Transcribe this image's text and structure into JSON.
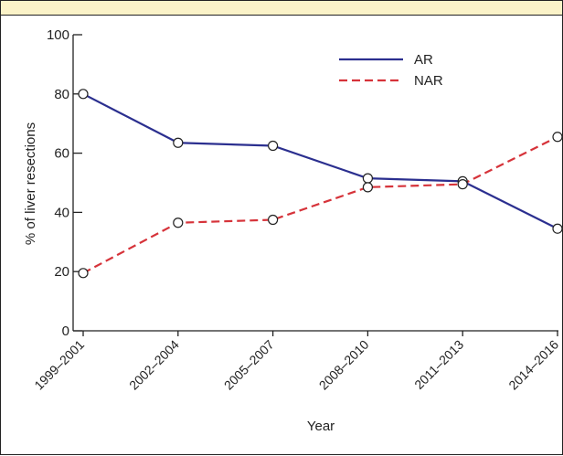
{
  "chart_data": {
    "type": "line",
    "categories": [
      "1999–2001",
      "2002–2004",
      "2005–2007",
      "2008–2010",
      "2011–2013",
      "2014–2016"
    ],
    "series": [
      {
        "name": "AR",
        "values": [
          80,
          63.5,
          62.5,
          51.5,
          50.5,
          34.5
        ],
        "color": "#2b2f8f",
        "style": "solid"
      },
      {
        "name": "NAR",
        "values": [
          19.5,
          36.5,
          37.5,
          48.5,
          49.5,
          65.5
        ],
        "color": "#d6333a",
        "style": "dashed"
      }
    ],
    "yticks": [
      "0",
      "20",
      "40",
      "60",
      "80",
      "100"
    ],
    "ylim": [
      0,
      100
    ],
    "xlabel": "Year",
    "ylabel": "% of liver resections",
    "legend_position": "top-right",
    "grid": false
  }
}
